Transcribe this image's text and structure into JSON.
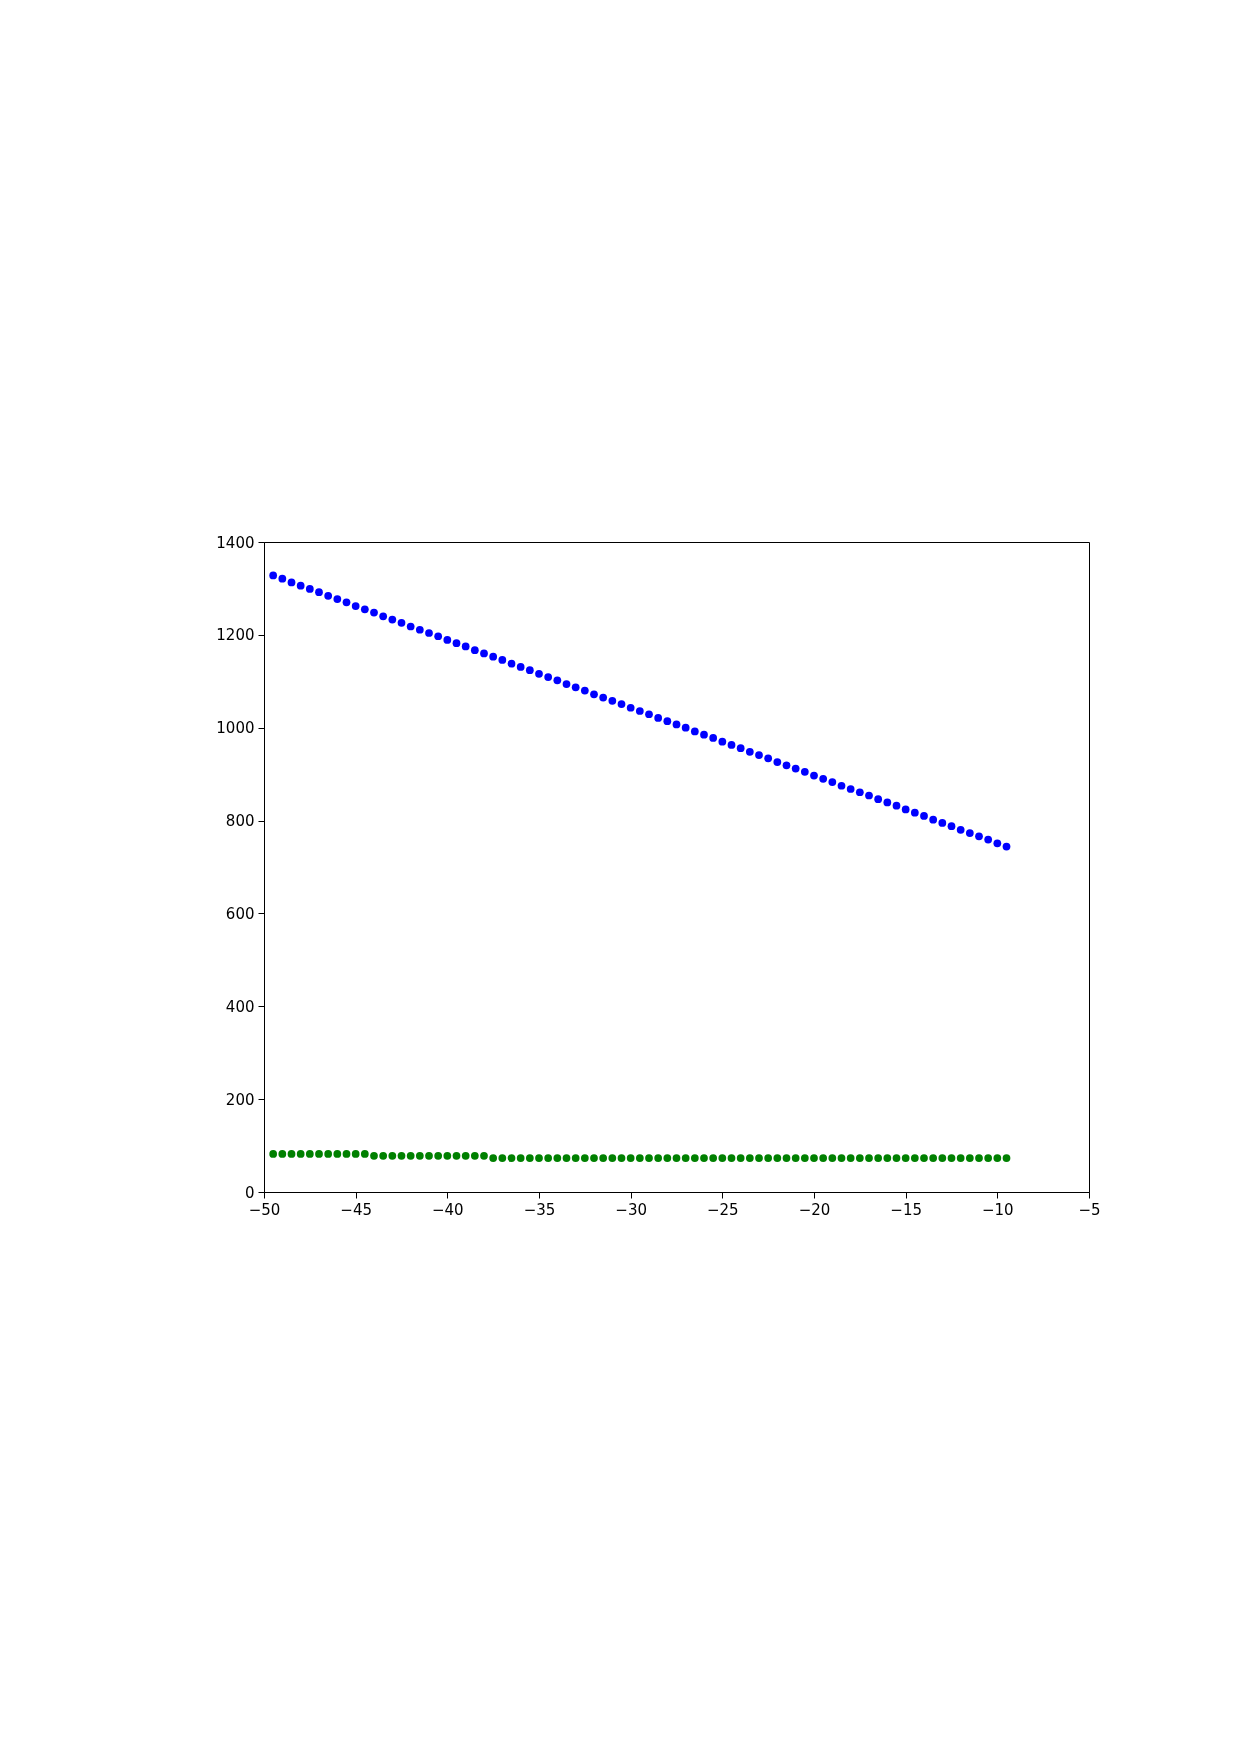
{
  "chart_data": {
    "type": "scatter",
    "x": [
      -49.5,
      -49,
      -48.5,
      -48,
      -47.5,
      -47,
      -46.5,
      -46,
      -45.5,
      -45,
      -44.5,
      -44,
      -43.5,
      -43,
      -42.5,
      -42,
      -41.5,
      -41,
      -40.5,
      -40,
      -39.5,
      -39,
      -38.5,
      -38,
      -37.5,
      -37,
      -36.5,
      -36,
      -35.5,
      -35,
      -34.5,
      -34,
      -33.5,
      -33,
      -32.5,
      -32,
      -31.5,
      -31,
      -30.5,
      -30,
      -29.5,
      -29,
      -28.5,
      -28,
      -27.5,
      -27,
      -26.5,
      -26,
      -25.5,
      -25,
      -24.5,
      -24,
      -23.5,
      -23,
      -22.5,
      -22,
      -21.5,
      -21,
      -20.5,
      -20,
      -19.5,
      -19,
      -18.5,
      -18,
      -17.5,
      -17,
      -16.5,
      -16,
      -15.5,
      -15,
      -14.5,
      -14,
      -13.5,
      -13,
      -12.5,
      -12,
      -11.5,
      -11,
      -10.5,
      -10,
      -9.5
    ],
    "series": [
      {
        "color": "#0000ff",
        "values": [
          1328,
          1321,
          1313,
          1306,
          1299,
          1292,
          1284,
          1277,
          1270,
          1262,
          1255,
          1248,
          1240,
          1233,
          1226,
          1218,
          1211,
          1204,
          1197,
          1189,
          1182,
          1175,
          1167,
          1160,
          1153,
          1146,
          1138,
          1131,
          1124,
          1116,
          1109,
          1102,
          1094,
          1087,
          1080,
          1072,
          1065,
          1058,
          1051,
          1043,
          1036,
          1029,
          1021,
          1014,
          1007,
          1000,
          992,
          985,
          978,
          970,
          963,
          956,
          948,
          941,
          934,
          926,
          919,
          912,
          905,
          897,
          890,
          883,
          875,
          868,
          861,
          854,
          846,
          839,
          832,
          824,
          817,
          810,
          802,
          795,
          788,
          780,
          773,
          766,
          759,
          751,
          744
        ]
      },
      {
        "color": "#008000",
        "values": [
          82,
          82,
          82,
          82,
          82,
          82,
          82,
          82,
          82,
          82,
          82,
          78,
          78,
          78,
          78,
          78,
          78,
          78,
          78,
          78,
          78,
          78,
          78,
          78,
          73,
          73,
          73,
          73,
          73,
          73,
          73,
          73,
          73,
          73,
          73,
          73,
          73,
          73,
          73,
          73,
          73,
          73,
          73,
          73,
          73,
          73,
          73,
          73,
          73,
          73,
          73,
          73,
          73,
          73,
          73,
          73,
          73,
          73,
          73,
          73,
          73,
          73,
          73,
          73,
          73,
          73,
          73,
          73,
          73,
          73,
          73,
          73,
          73,
          73,
          73,
          73,
          73,
          73,
          73,
          73,
          73
        ]
      }
    ],
    "xlim": [
      -50,
      -5
    ],
    "xticks": [
      -50,
      -45,
      -40,
      -35,
      -30,
      -25,
      -20,
      -15,
      -10,
      -5
    ],
    "ylim": [
      0,
      1400
    ],
    "yticks": [
      0,
      200,
      400,
      600,
      800,
      1000,
      1200,
      1400
    ],
    "marker": "circle"
  }
}
